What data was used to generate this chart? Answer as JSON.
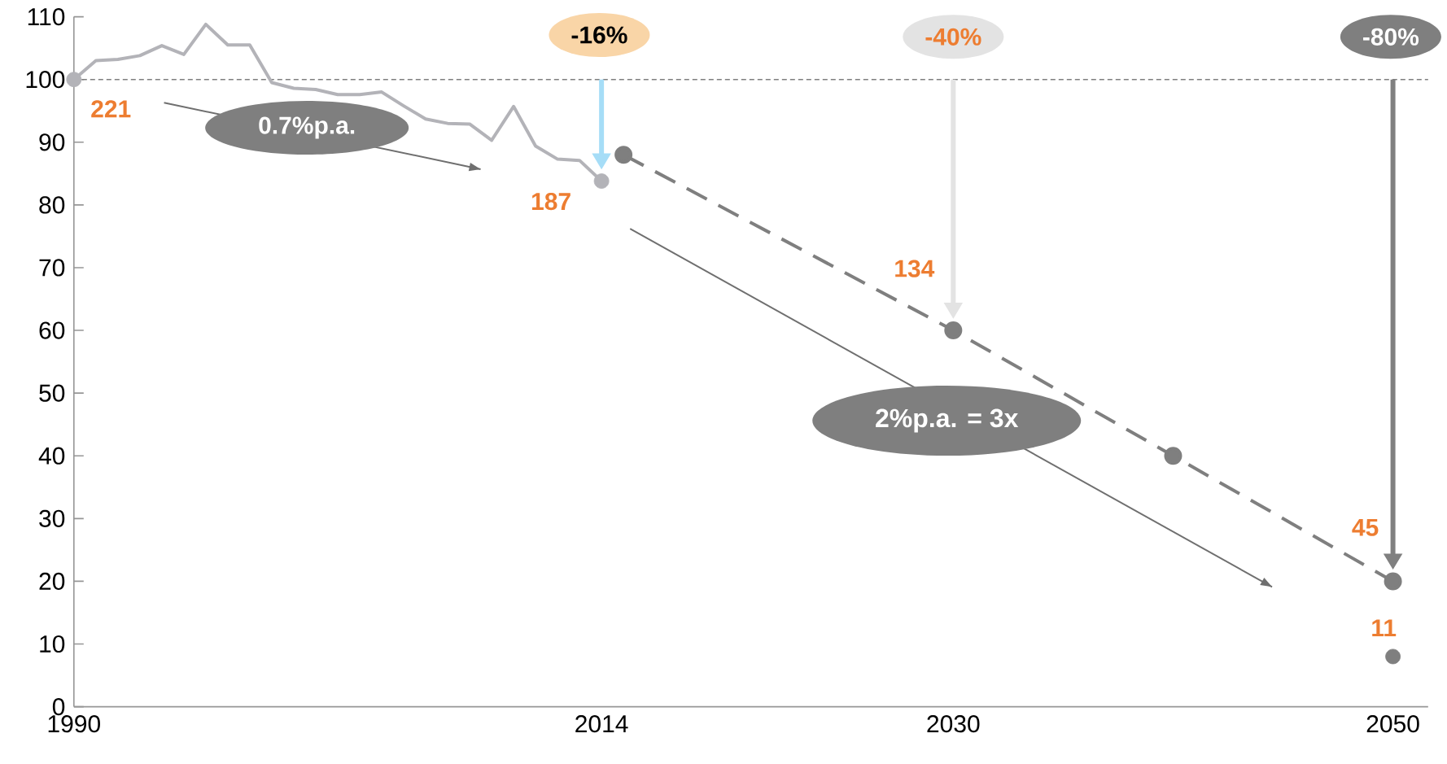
{
  "chart_data": {
    "type": "line",
    "x": [
      1990,
      1991,
      1992,
      1993,
      1994,
      1995,
      1996,
      1997,
      1998,
      1999,
      2000,
      2001,
      2002,
      2003,
      2004,
      2005,
      2006,
      2007,
      2008,
      2009,
      2010,
      2011,
      2012,
      2013,
      2014
    ],
    "series": [
      {
        "color": "#b3b3b8",
        "marker": "none",
        "values": [
          100,
          103,
          103.2,
          103.8,
          105.4,
          104,
          108.8,
          105.5,
          105.5,
          99.5,
          98.6,
          98.4,
          97.6,
          97.6,
          98,
          95.8,
          93.7,
          93,
          92.9,
          90.3,
          95.7,
          89.4,
          87.3,
          87.1,
          83.8
        ]
      },
      {
        "type": "scatter",
        "color": "#b3b3b8",
        "marker": "circle",
        "x": [
          1990,
          2014
        ],
        "values": [
          100,
          83.8
        ]
      },
      {
        "color": "#7f7f7f",
        "marker": "circle",
        "line_style": "dashed",
        "x": [
          2015,
          2030,
          2040,
          2050
        ],
        "values": [
          88,
          60,
          40,
          20
        ]
      },
      {
        "type": "scatter",
        "color": "#7f7f7f",
        "marker": "circle",
        "x": [
          2050
        ],
        "values": [
          8
        ]
      },
      {
        "color": "#6f6f6f",
        "marker": "none",
        "x": [
          1994.1,
          2008.5
        ],
        "values": [
          96.3,
          85.7
        ]
      },
      {
        "color": "#6f6f6f",
        "marker": "none",
        "x": [
          2015.3,
          2044.5
        ],
        "values": [
          76.2,
          19.1
        ]
      }
    ],
    "xlim": [
      1990,
      2051.6
    ],
    "xticks": [
      1990,
      2014,
      2030,
      2050
    ],
    "ylim": [
      0,
      110
    ],
    "yticks": [
      0,
      10,
      20,
      30,
      40,
      50,
      60,
      70,
      80,
      90,
      100,
      110
    ],
    "ref_lines": [
      {
        "axis": "y",
        "value": 100,
        "color": "#7f7f7f",
        "line_style": "dashed"
      }
    ],
    "annotations": [
      {
        "text": "221",
        "x": 1990,
        "y": 100
      },
      {
        "text": "187",
        "x": 2014,
        "y": 83.8
      },
      {
        "text": "134",
        "x": 2030,
        "y": 60
      },
      {
        "text": "45",
        "x": 2050,
        "y": 20
      },
      {
        "text": "11",
        "x": 2050,
        "y": 8
      },
      "0.7%p.a.",
      "2%p.a. = 3x",
      "-16%",
      "-40%",
      "-80%"
    ]
  }
}
